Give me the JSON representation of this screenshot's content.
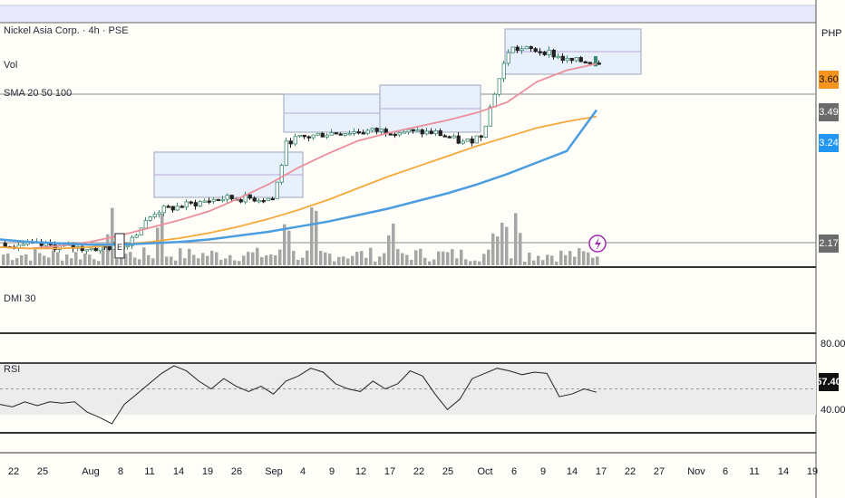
{
  "header": {
    "symbol_line": "Nickel Asia Corp. · 4h · PSE",
    "volume_label": "Vol",
    "sma_label": "SMA 20 50 100",
    "currency": "PHP",
    "dmi_label": "DMI 30",
    "rsi_label": "RSI",
    "earnings_marker": "E"
  },
  "price_badges": {
    "sma20_value": "3.60",
    "last_close": "3.49",
    "sma100_value": "3.24",
    "volume_value": "2.17",
    "rsi_value": "57.40",
    "rsi_upper": "80.00",
    "rsi_lower": "40.00"
  },
  "colors": {
    "background": "#fffdf8",
    "candle_up": "#3c8a74",
    "candle_down": "#222222",
    "sma20": "#ec8f9b",
    "sma50": "#f5a93a",
    "sma100": "#4a9de0",
    "volume": "#a6a6a6",
    "range_box": "#e8f0fb",
    "badge_orange": "#f7941d",
    "badge_gray": "#6b6b6b",
    "badge_blue": "#2196f3"
  },
  "chart_data": {
    "type": "line",
    "title": "Nickel Asia Corp. · 4h · PSE",
    "xlabel": "",
    "ylabel": "PHP",
    "x_tick_labels": [
      "22",
      "25",
      "Aug",
      "8",
      "11",
      "14",
      "19",
      "26",
      "Sep",
      "4",
      "9",
      "12",
      "17",
      "22",
      "25",
      "Oct",
      "6",
      "9",
      "14",
      "17",
      "22",
      "27",
      "Nov",
      "6",
      "11",
      "14",
      "19"
    ],
    "price_axis_visible_labels": [
      "3.60",
      "3.49",
      "3.24",
      "2.17"
    ],
    "series": [
      {
        "name": "SMA 20",
        "values": [
          2.17,
          2.16,
          2.18,
          2.21,
          2.26,
          2.32,
          2.38,
          2.45,
          2.55,
          2.66,
          2.79,
          2.9,
          3.0,
          3.06,
          3.11,
          3.16,
          3.22,
          3.3,
          3.46,
          3.55,
          3.6
        ]
      },
      {
        "name": "SMA 50",
        "values": [
          2.17,
          2.16,
          2.16,
          2.17,
          2.19,
          2.21,
          2.24,
          2.28,
          2.33,
          2.39,
          2.46,
          2.54,
          2.63,
          2.72,
          2.8,
          2.88,
          2.96,
          3.03,
          3.1,
          3.15,
          3.19
        ]
      },
      {
        "name": "SMA 100",
        "values": [
          2.23,
          2.21,
          2.2,
          2.19,
          2.19,
          2.2,
          2.21,
          2.23,
          2.26,
          2.29,
          2.33,
          2.37,
          2.42,
          2.47,
          2.53,
          2.59,
          2.66,
          2.74,
          2.83,
          2.92,
          3.24
        ]
      }
    ],
    "volume": {
      "last": 2.17
    },
    "rsi": {
      "last": 57.4,
      "levels": [
        80.0,
        40.0
      ],
      "values": [
        48,
        46,
        50,
        47,
        50,
        49,
        50,
        42,
        38,
        33,
        48,
        56,
        64,
        72,
        78,
        74,
        66,
        60,
        68,
        62,
        58,
        62,
        56,
        66,
        70,
        76,
        73,
        64,
        60,
        58,
        66,
        60,
        64,
        74,
        70,
        56,
        44,
        52,
        68,
        72,
        76,
        74,
        71,
        73,
        72,
        54,
        56,
        60,
        57.4
      ]
    },
    "grid": false,
    "legend": "top-left"
  }
}
